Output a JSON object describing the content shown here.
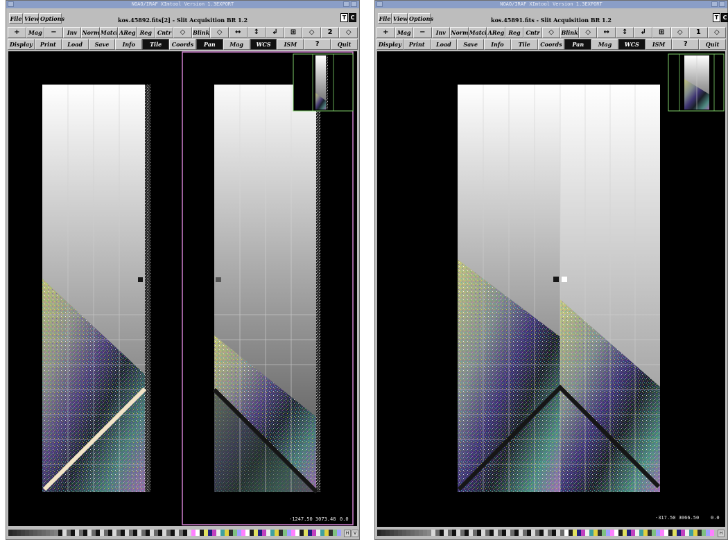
{
  "left_window": {
    "title": "NOAO/IRAF XImtool Version 1.3EXPORT",
    "file_title": "kos.45892.fits[2] - Slit Acquisition BR 1.2",
    "menu": [
      "File",
      "View",
      "Options"
    ],
    "tc": [
      "T",
      "C"
    ],
    "row1": [
      "+",
      "Mag",
      "−",
      "Inv",
      "Norm",
      "Match",
      "AReg",
      "Reg",
      "Cntr",
      "◇",
      "Blink",
      "◇",
      "↔",
      "↕",
      "↲",
      "⊞",
      "◇",
      "2",
      "◇"
    ],
    "row2": [
      "Display",
      "Print",
      "Load",
      "Save",
      "Info",
      "Tile",
      "Coords",
      "Pan",
      "Mag",
      "WCS",
      "ISM",
      "?",
      "Quit"
    ],
    "row2_active": [
      "Tile",
      "Pan",
      "WCS"
    ],
    "coords": "-1247.50 3073.48",
    "value": "0.0",
    "scroll_labels": [
      "H",
      "V"
    ]
  },
  "right_window": {
    "title": "NOAO/IRAF XImtool Version 1.3EXPORT",
    "file_title": "kos.45891.fits - Slit Acquisition BR 1.2",
    "menu": [
      "File",
      "View",
      "Options"
    ],
    "tc": [
      "T",
      "C"
    ],
    "row1": [
      "+",
      "Mag",
      "−",
      "Inv",
      "Norm",
      "Match",
      "AReg",
      "Reg",
      "Cntr",
      "◇",
      "Blink",
      "◇",
      "↔",
      "↕",
      "↲",
      "⊞",
      "◇",
      "1",
      "◇"
    ],
    "row2": [
      "Display",
      "Print",
      "Load",
      "Save",
      "Info",
      "Tile",
      "Coords",
      "Pan",
      "Mag",
      "WCS",
      "ISM",
      "?",
      "Quit"
    ],
    "row2_active": [
      "Pan",
      "WCS"
    ],
    "coords": "-317.50 3066.50",
    "value": "0.0",
    "scroll_labels": [
      "H"
    ]
  },
  "colors": {
    "titlebar": "#8a9ec7",
    "chrome": "#bdbdbd",
    "panel_frame": "#d080d0",
    "panner_frame": "#7fd16a",
    "slit_mask_light": "#f2e4c8",
    "slit_mask_dark": "#161616"
  }
}
